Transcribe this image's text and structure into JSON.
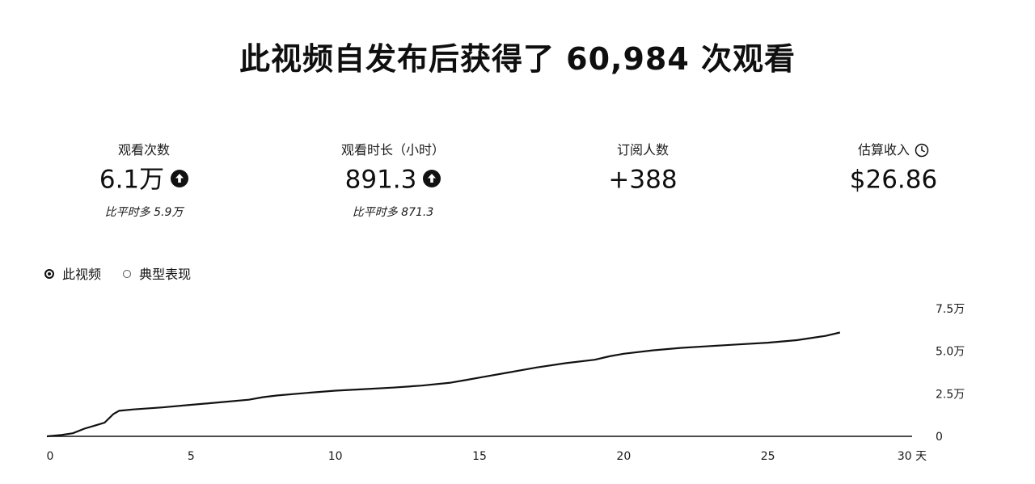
{
  "headline": "此视频自发布后获得了 60,984 次观看",
  "metrics": {
    "views": {
      "label": "观看次数",
      "value": "6.1万",
      "compare": "比平时多 5.9万",
      "trend_icon": "arrow-up-circle-icon"
    },
    "watch_time": {
      "label": "观看时长（小时）",
      "value": "891.3",
      "compare": "比平时多 871.3",
      "trend_icon": "arrow-up-circle-icon"
    },
    "subscribers": {
      "label": "订阅人数",
      "value": "+388"
    },
    "revenue": {
      "label": "估算收入",
      "value": "$26.86",
      "info_icon": "clock-icon"
    }
  },
  "legend": {
    "this_video": "此视频",
    "typical": "典型表现"
  },
  "chart_data": {
    "type": "line",
    "x_tick_labels": [
      "0",
      "5",
      "10",
      "15",
      "20",
      "25",
      "30 天"
    ],
    "y_tick_labels": [
      "0",
      "2.5万",
      "5.0万",
      "7.5万"
    ],
    "xlim": [
      0,
      30
    ],
    "ylim": [
      0,
      75000
    ],
    "y_ticks": [
      0,
      25000,
      50000,
      75000
    ],
    "x_ticks": [
      0,
      5,
      10,
      15,
      20,
      25,
      30
    ],
    "grid": false,
    "legend_position": "top-left",
    "series": [
      {
        "name": "此视频",
        "color": "#111111",
        "x": [
          0,
          0.5,
          0.9,
          1.3,
          1.7,
          2.0,
          2.3,
          2.5,
          3.0,
          4.0,
          5.0,
          6.0,
          7.0,
          7.5,
          8.0,
          9.0,
          10.0,
          11.0,
          12.0,
          13.0,
          14.0,
          14.5,
          15.0,
          16.0,
          17.0,
          18.0,
          19.0,
          19.5,
          20.0,
          21.0,
          22.0,
          23.0,
          24.0,
          25.0,
          26.0,
          27.0,
          27.5
        ],
        "y": [
          0,
          800,
          1800,
          4500,
          6500,
          8000,
          13000,
          15000,
          15800,
          17000,
          18500,
          20000,
          21500,
          23000,
          24000,
          25500,
          26800,
          27700,
          28600,
          29800,
          31500,
          33000,
          34500,
          37500,
          40500,
          43000,
          45000,
          47000,
          48500,
          50500,
          52000,
          53000,
          54000,
          55000,
          56500,
          59000,
          61000
        ]
      }
    ]
  }
}
